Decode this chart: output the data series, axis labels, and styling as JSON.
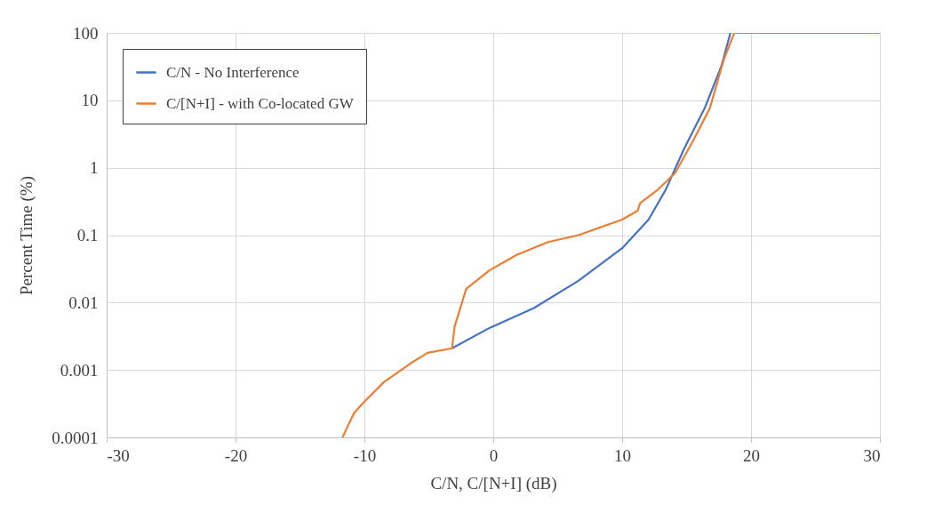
{
  "chart_data": {
    "type": "line",
    "xlabel": "C/N, C/[N+I] (dB)",
    "ylabel": "Percent Time (%)",
    "xlim": [
      -30,
      30
    ],
    "xticks": [
      -30,
      -20,
      -10,
      0,
      10,
      20,
      30
    ],
    "ylim": [
      0.0001,
      100
    ],
    "yticks": [
      0.0001,
      0.001,
      0.01,
      0.1,
      1,
      10,
      100
    ],
    "log": "y",
    "grid": true,
    "legend": "top left",
    "line_style": "solid",
    "series": [
      {
        "name": "C/N - No Interference",
        "color": "#4472c4",
        "x": [
          -3.2,
          -0.3,
          3.15,
          6.6,
          10.0,
          12.05,
          13.4,
          14.8,
          16.4,
          17.7,
          18.4
        ],
        "values": [
          0.0021,
          0.0042,
          0.0083,
          0.021,
          0.064,
          0.17,
          0.48,
          1.9,
          7.6,
          32,
          100
        ]
      },
      {
        "name": "C/[N+I] - with Co-located GW",
        "color": "#ed7d31",
        "x": [
          -11.7,
          -11.2,
          -10.8,
          -10.0,
          -8.5,
          -6.4,
          -5.1,
          -3.2,
          -3.0,
          -2.1,
          -0.3,
          1.8,
          4.25,
          6.6,
          10.0,
          11.2,
          11.4,
          12.7,
          14.1,
          15.5,
          16.8,
          17.9,
          18.7,
          30
        ],
        "values": [
          0.0001,
          0.00016,
          0.00023,
          0.00034,
          0.00066,
          0.00126,
          0.0018,
          0.0021,
          0.0044,
          0.016,
          0.03,
          0.051,
          0.079,
          0.1,
          0.17,
          0.23,
          0.3,
          0.46,
          0.83,
          2.5,
          7.6,
          41,
          100,
          100
        ]
      }
    ]
  }
}
